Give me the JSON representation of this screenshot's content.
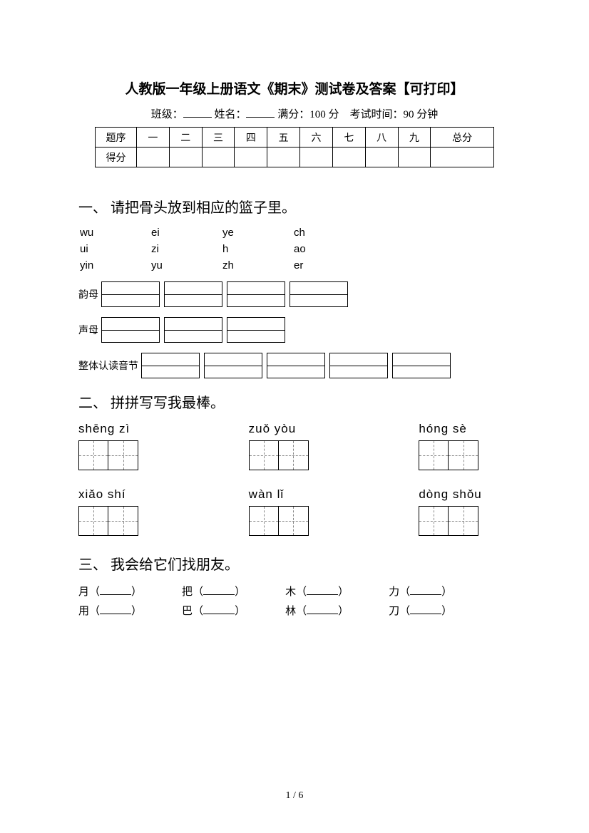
{
  "title": "人教版一年级上册语文《期末》测试卷及答案【可打印】",
  "info": {
    "class_label": "班级：",
    "name_label": "姓名：",
    "full_label": "满分：",
    "full_value": "100 分",
    "time_label": "考试时间：",
    "time_value": "90 分钟"
  },
  "score_table": {
    "row1": [
      "题序",
      "一",
      "二",
      "三",
      "四",
      "五",
      "六",
      "七",
      "八",
      "九",
      "总分"
    ],
    "row2_label": "得分"
  },
  "q1": {
    "heading": "一、 请把骨头放到相应的篮子里。",
    "rows": [
      [
        "wu",
        "ei",
        "ye",
        "ch"
      ],
      [
        "ui",
        "zi",
        "h",
        "ao"
      ],
      [
        "yin",
        "yu",
        "zh",
        "er"
      ]
    ],
    "cats": [
      {
        "label": "韵母",
        "boxes": 4
      },
      {
        "label": "声母",
        "boxes": 3
      },
      {
        "label": "整体认读音节",
        "boxes": 5
      }
    ]
  },
  "q2": {
    "heading": "二、 拼拼写写我最棒。",
    "items": [
      [
        "shēng  zì",
        "zuǒ  yòu",
        "hóng  sè"
      ],
      [
        "xiǎo   shí",
        "wàn  lǐ",
        "dòng shǒu"
      ]
    ]
  },
  "q3": {
    "heading": "三、 我会给它们找朋友。",
    "rows": [
      [
        "月",
        "把",
        "木",
        "力"
      ],
      [
        "用",
        "巴",
        "林",
        "刀"
      ]
    ]
  },
  "footer": "1 / 6",
  "colors": {
    "text": "#000000",
    "bg": "#ffffff",
    "dash": "#888888"
  }
}
